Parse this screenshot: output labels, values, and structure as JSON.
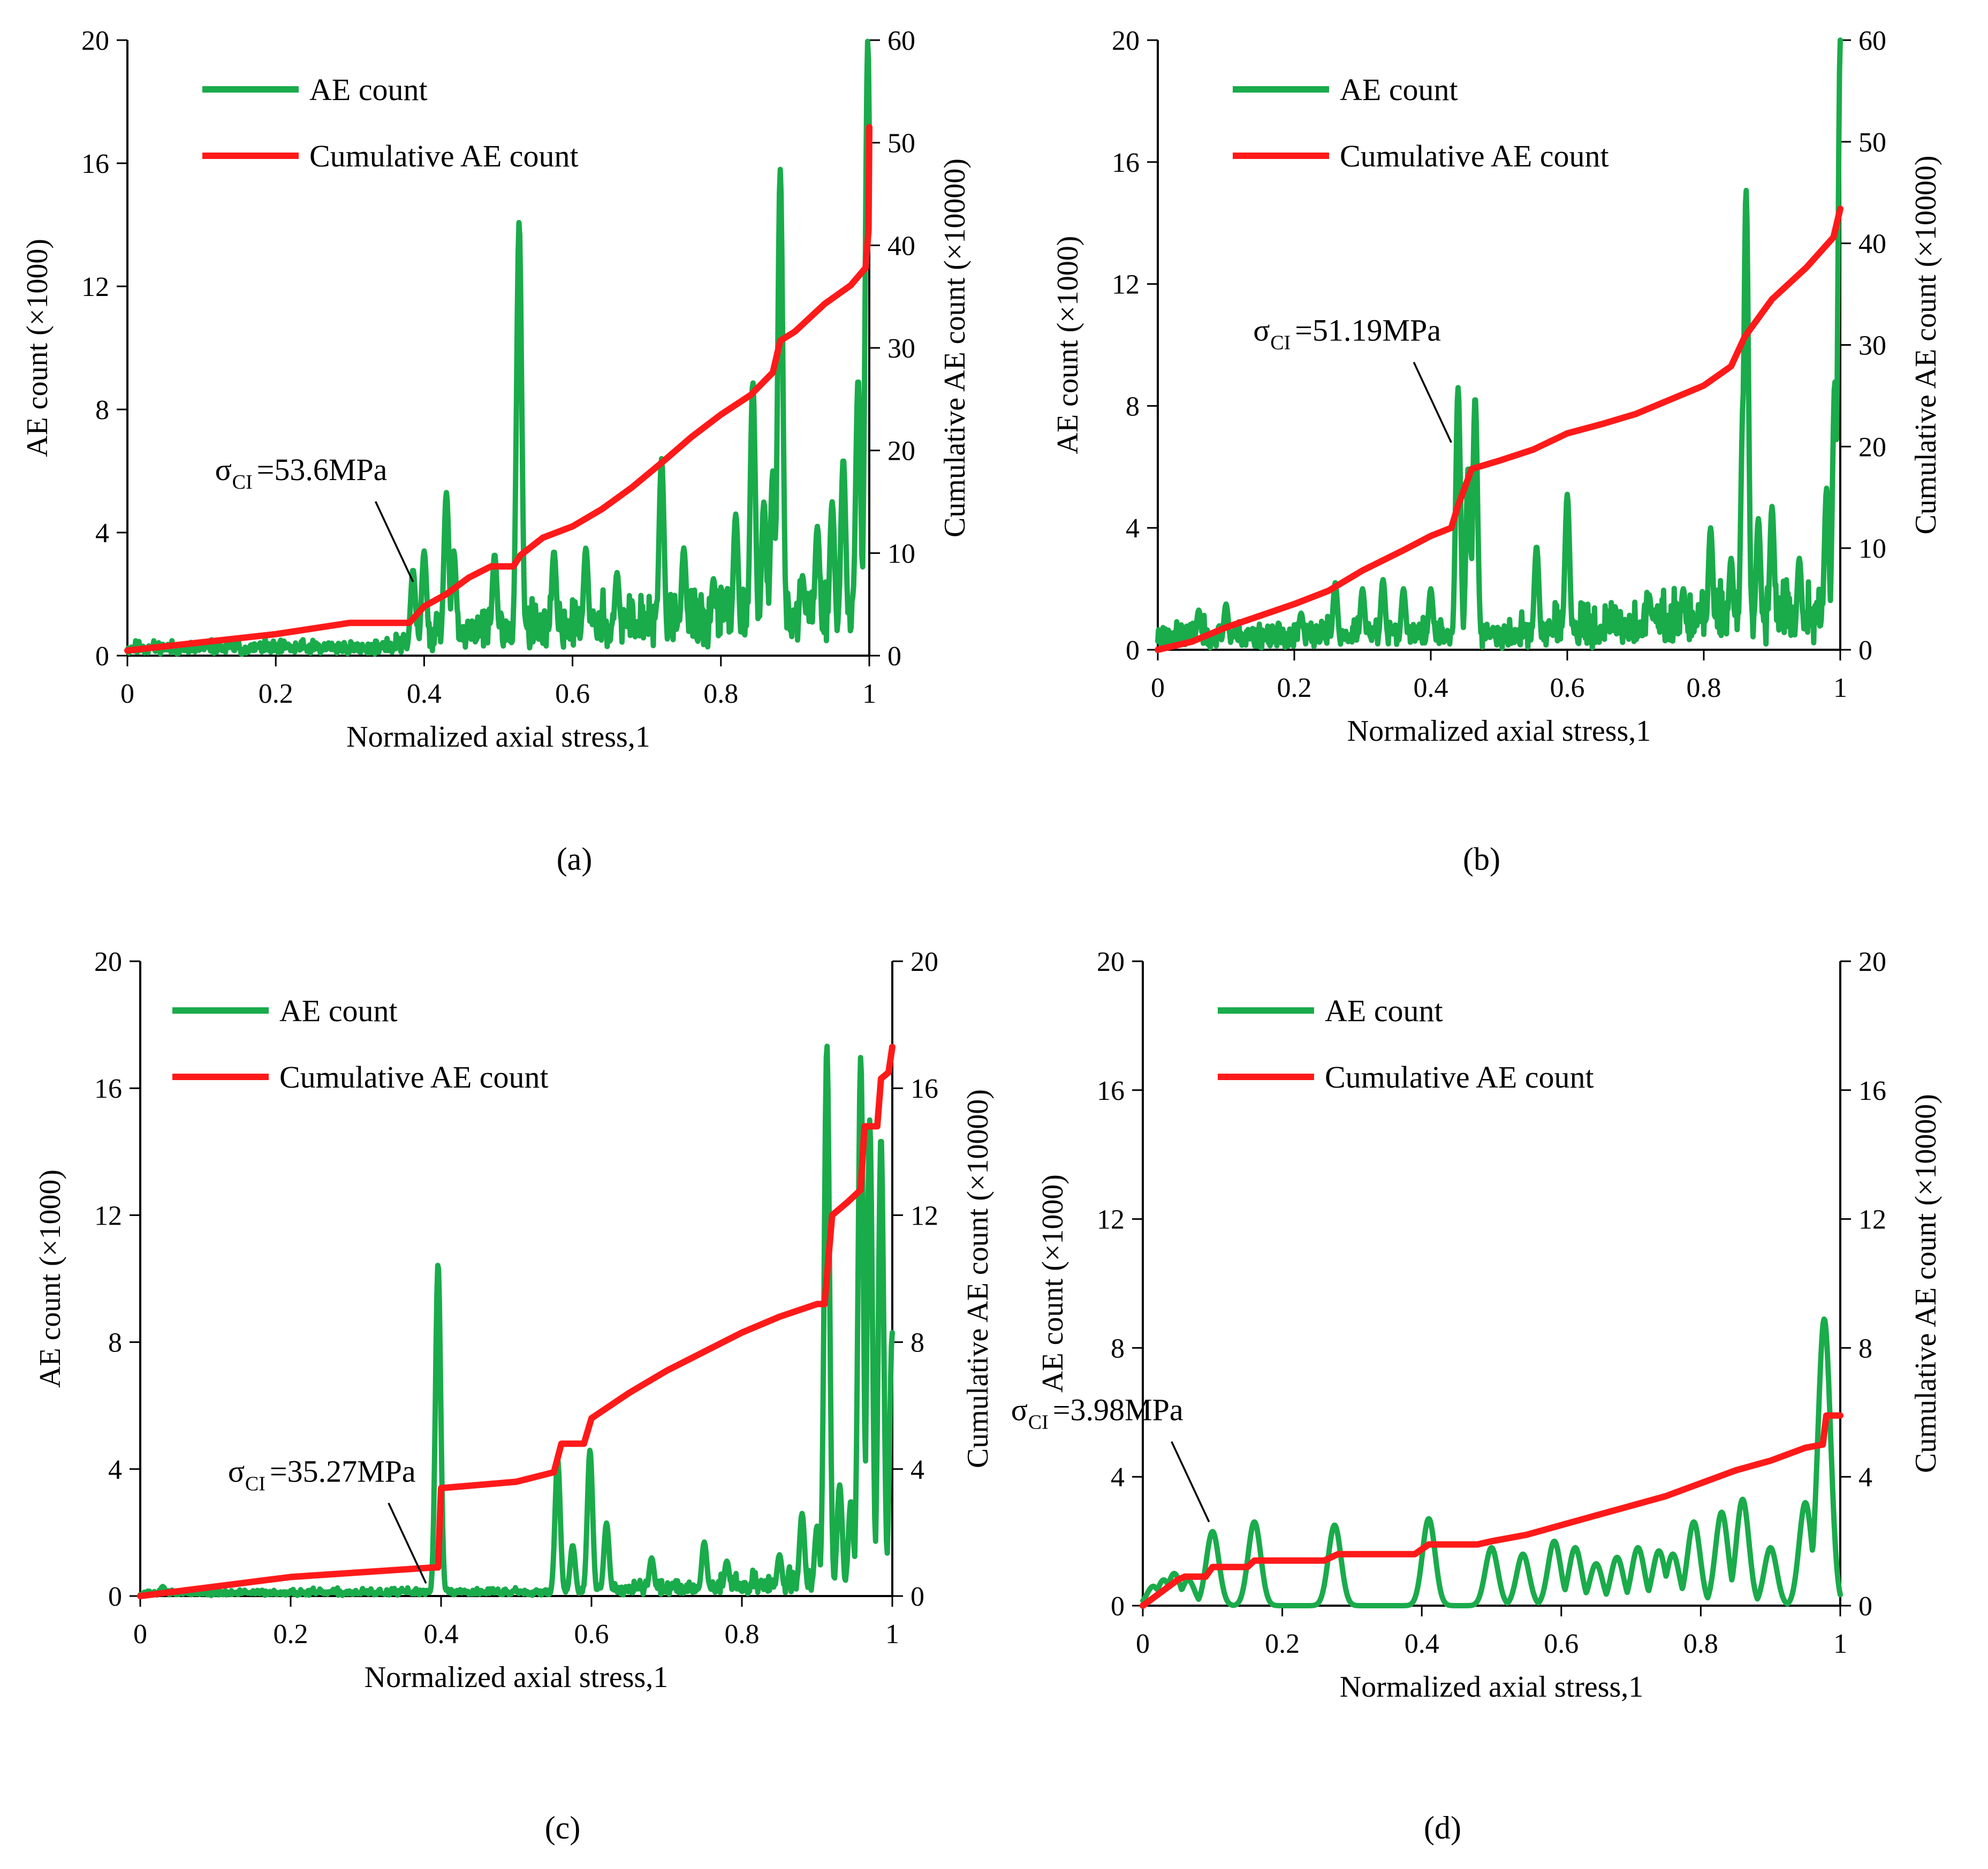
{
  "colors": {
    "ae": "#1aab4b",
    "cumulative": "#ff1a1a",
    "axis": "#000000"
  },
  "chart_data": [
    {
      "type": "line",
      "panel": "(a)",
      "xlabel": "Normalized axial stress,1",
      "ylabel": "AE count (×1000)",
      "y2label": "Cumulative AE count (×10000)",
      "xlim": [
        0,
        1
      ],
      "ylim": [
        0,
        20
      ],
      "y2lim": [
        0,
        60
      ],
      "xticks": [
        "0",
        "0.2",
        "0.4",
        "0.6",
        "0.8",
        "1"
      ],
      "yticks": [
        "0",
        "4",
        "8",
        "12",
        "16",
        "20"
      ],
      "y2ticks": [
        "0",
        "10",
        "20",
        "30",
        "40",
        "50",
        "60"
      ],
      "legend": [
        "AE count",
        "Cumulative AE count"
      ],
      "annotation": {
        "symbol": "σ",
        "sub": "CI",
        "text": "=53.6MPa",
        "x": 0.385,
        "y": 2.4
      },
      "series": [
        {
          "name": "AE count",
          "axis": "left",
          "baseline": 0.45,
          "noise": 0.35,
          "seed": 11,
          "noise_ramp": [
            [
              0.35,
              0.4
            ],
            [
              0.4,
              1.2
            ],
            [
              1.0,
              2.2
            ]
          ],
          "peaks": [
            [
              0.385,
              2.8
            ],
            [
              0.4,
              3.4
            ],
            [
              0.43,
              5.3
            ],
            [
              0.44,
              3.4
            ],
            [
              0.495,
              3.3
            ],
            [
              0.528,
              14.1
            ],
            [
              0.575,
              3.4
            ],
            [
              0.618,
              3.5
            ],
            [
              0.66,
              2.7
            ],
            [
              0.72,
              6.4
            ],
            [
              0.75,
              3.5
            ],
            [
              0.79,
              2.5
            ],
            [
              0.82,
              4.6
            ],
            [
              0.843,
              8.9
            ],
            [
              0.858,
              5.0
            ],
            [
              0.87,
              6.0
            ],
            [
              0.88,
              15.8
            ],
            [
              0.91,
              2.6
            ],
            [
              0.93,
              4.2
            ],
            [
              0.95,
              5.0
            ],
            [
              0.965,
              6.4
            ],
            [
              0.985,
              9.0
            ],
            [
              0.998,
              20.0
            ]
          ]
        },
        {
          "name": "Cumulative AE count",
          "axis": "right",
          "x": [
            0,
            0.1,
            0.2,
            0.3,
            0.38,
            0.4,
            0.43,
            0.46,
            0.49,
            0.52,
            0.53,
            0.56,
            0.6,
            0.64,
            0.68,
            0.72,
            0.76,
            0.8,
            0.84,
            0.87,
            0.88,
            0.9,
            0.94,
            0.975,
            0.995,
            0.999,
            1.0
          ],
          "values": [
            0.5,
            1.3,
            2.1,
            3.2,
            3.2,
            4.8,
            6.0,
            7.6,
            8.7,
            8.7,
            9.8,
            11.5,
            12.6,
            14.3,
            16.4,
            18.8,
            21.3,
            23.5,
            25.4,
            27.6,
            30.7,
            31.6,
            34.3,
            36.1,
            37.8,
            41.5,
            51.5
          ]
        }
      ]
    },
    {
      "type": "line",
      "panel": "(b)",
      "xlabel": "Normalized axial stress,1",
      "ylabel": "AE count (×1000)",
      "y2label": "Cumulative AE count (×10000)",
      "xlim": [
        0,
        1
      ],
      "ylim": [
        0,
        20
      ],
      "y2lim": [
        0,
        60
      ],
      "xticks": [
        "0",
        "0.2",
        "0.4",
        "0.6",
        "0.8",
        "1"
      ],
      "yticks": [
        "0",
        "4",
        "8",
        "12",
        "16",
        "20"
      ],
      "y2ticks": [
        "0",
        "10",
        "20",
        "30",
        "40",
        "50",
        "60"
      ],
      "legend": [
        "AE count",
        "Cumulative AE count"
      ],
      "annotation": {
        "symbol": "σ",
        "sub": "CI",
        "text": "=51.19MPa",
        "x": 0.43,
        "y": 6.8
      },
      "series": [
        {
          "name": "AE count",
          "axis": "left",
          "baseline": 0.5,
          "noise": 0.45,
          "seed": 23,
          "noise_ramp": [
            [
              0.0,
              0.6
            ],
            [
              0.5,
              0.7
            ],
            [
              1.0,
              1.8
            ]
          ],
          "peaks": [
            [
              0.06,
              1.3
            ],
            [
              0.1,
              1.5
            ],
            [
              0.21,
              1.2
            ],
            [
              0.26,
              2.2
            ],
            [
              0.3,
              2.0
            ],
            [
              0.33,
              2.3
            ],
            [
              0.36,
              2.0
            ],
            [
              0.4,
              2.0
            ],
            [
              0.44,
              8.6
            ],
            [
              0.455,
              6.0
            ],
            [
              0.465,
              8.3
            ],
            [
              0.555,
              3.4
            ],
            [
              0.6,
              5.1
            ],
            [
              0.72,
              1.8
            ],
            [
              0.77,
              2.0
            ],
            [
              0.81,
              4.0
            ],
            [
              0.84,
              3.0
            ],
            [
              0.858,
              8.4
            ],
            [
              0.862,
              15.1
            ],
            [
              0.88,
              4.3
            ],
            [
              0.9,
              4.7
            ],
            [
              0.94,
              3.0
            ],
            [
              0.98,
              5.3
            ],
            [
              0.992,
              8.8
            ],
            [
              1.0,
              20.0
            ]
          ]
        },
        {
          "name": "Cumulative AE count",
          "axis": "right",
          "x": [
            0,
            0.05,
            0.1,
            0.2,
            0.25,
            0.3,
            0.36,
            0.4,
            0.43,
            0.44,
            0.46,
            0.5,
            0.55,
            0.6,
            0.65,
            0.7,
            0.75,
            0.8,
            0.84,
            0.86,
            0.9,
            0.95,
            0.99,
            1.0
          ],
          "values": [
            0.0,
            0.8,
            2.2,
            4.5,
            5.8,
            7.8,
            9.8,
            11.2,
            12.0,
            14.2,
            17.8,
            18.6,
            19.7,
            21.3,
            22.2,
            23.2,
            24.6,
            26.0,
            27.9,
            30.8,
            34.5,
            37.6,
            40.6,
            43.4
          ]
        }
      ]
    },
    {
      "type": "line",
      "panel": "(c)",
      "xlabel": "Normalized axial stress,1",
      "ylabel": "AE count (×1000)",
      "y2label": "Cumulative AE count (×10000)",
      "xlim": [
        0,
        1
      ],
      "ylim": [
        0,
        20
      ],
      "y2lim": [
        0,
        20
      ],
      "xticks": [
        "0",
        "0.2",
        "0.4",
        "0.6",
        "0.8",
        "1"
      ],
      "yticks": [
        "0",
        "4",
        "8",
        "12",
        "16",
        "20"
      ],
      "y2ticks": [
        "0",
        "4",
        "8",
        "12",
        "16",
        "20"
      ],
      "legend": [
        "AE count",
        "Cumulative AE count"
      ],
      "annotation": {
        "symbol": "σ",
        "sub": "CI",
        "text": "=35.27MPa",
        "x": 0.38,
        "y": 0.4
      },
      "series": [
        {
          "name": "AE count",
          "axis": "left",
          "baseline": 0.12,
          "noise": 0.1,
          "seed": 37,
          "noise_ramp": [
            [
              0.0,
              0.5
            ],
            [
              0.55,
              0.8
            ],
            [
              1.0,
              3.0
            ]
          ],
          "peaks": [
            [
              0.03,
              0.3
            ],
            [
              0.396,
              10.5
            ],
            [
              0.555,
              4.3
            ],
            [
              0.575,
              1.6
            ],
            [
              0.598,
              4.6
            ],
            [
              0.62,
              2.3
            ],
            [
              0.68,
              1.2
            ],
            [
              0.75,
              1.7
            ],
            [
              0.78,
              1.1
            ],
            [
              0.85,
              1.3
            ],
            [
              0.88,
              2.6
            ],
            [
              0.9,
              2.2
            ],
            [
              0.913,
              17.4
            ],
            [
              0.93,
              3.5
            ],
            [
              0.945,
              3.0
            ],
            [
              0.958,
              17.0
            ],
            [
              0.97,
              15.0
            ],
            [
              0.985,
              14.5
            ],
            [
              1.0,
              8.3
            ]
          ]
        },
        {
          "name": "Cumulative AE count",
          "axis": "right",
          "x": [
            0,
            0.2,
            0.39,
            0.396,
            0.4,
            0.5,
            0.55,
            0.56,
            0.59,
            0.6,
            0.65,
            0.7,
            0.75,
            0.8,
            0.85,
            0.9,
            0.91,
            0.92,
            0.94,
            0.958,
            0.963,
            0.98,
            0.985,
            0.995,
            1.0
          ],
          "values": [
            0.0,
            0.6,
            0.9,
            0.9,
            3.4,
            3.6,
            3.9,
            4.8,
            4.8,
            5.6,
            6.4,
            7.1,
            7.7,
            8.3,
            8.8,
            9.2,
            9.2,
            12.0,
            12.4,
            12.8,
            14.8,
            14.8,
            16.3,
            16.5,
            17.3
          ]
        }
      ]
    },
    {
      "type": "line",
      "panel": "(d)",
      "xlabel": "Normalized axial stress,1",
      "ylabel": "AE count (×1000)",
      "y2label": "Cumulative AE count (×10000)",
      "xlim": [
        0,
        1
      ],
      "ylim": [
        0,
        20
      ],
      "y2lim": [
        0,
        20
      ],
      "xticks": [
        "0",
        "0.2",
        "0.4",
        "0.6",
        "0.8",
        "1"
      ],
      "yticks": [
        "0",
        "4",
        "8",
        "12",
        "16",
        "20"
      ],
      "y2ticks": [
        "0",
        "4",
        "8",
        "12",
        "16",
        "20"
      ],
      "legend": [
        "AE count",
        "Cumulative AE count"
      ],
      "annotation": {
        "symbol": "σ",
        "sub": "CI",
        "text": "=3.98MPa",
        "x": 0.095,
        "y": 2.6
      },
      "series": [
        {
          "name": "AE count",
          "axis": "left",
          "baseline": 0.0,
          "noise": 0.0,
          "seed": 5,
          "peak_width": 0.009,
          "noise_ramp": [
            [
              0.0,
              0.0
            ],
            [
              1.0,
              0.0
            ]
          ],
          "peaks": [
            [
              0.015,
              0.6
            ],
            [
              0.03,
              0.8
            ],
            [
              0.045,
              1.0
            ],
            [
              0.065,
              0.8
            ],
            [
              0.1,
              2.3
            ],
            [
              0.16,
              2.6
            ],
            [
              0.275,
              2.5
            ],
            [
              0.41,
              2.7
            ],
            [
              0.5,
              1.8
            ],
            [
              0.545,
              1.6
            ],
            [
              0.59,
              2.0
            ],
            [
              0.62,
              1.8
            ],
            [
              0.65,
              1.3
            ],
            [
              0.68,
              1.5
            ],
            [
              0.71,
              1.8
            ],
            [
              0.74,
              1.7
            ],
            [
              0.76,
              1.6
            ],
            [
              0.79,
              2.6
            ],
            [
              0.83,
              2.9
            ],
            [
              0.86,
              3.3
            ],
            [
              0.9,
              1.8
            ],
            [
              0.95,
              3.2
            ],
            [
              0.977,
              8.9
            ]
          ]
        },
        {
          "name": "Cumulative AE count",
          "axis": "right",
          "x": [
            0,
            0.05,
            0.06,
            0.09,
            0.1,
            0.15,
            0.16,
            0.26,
            0.28,
            0.39,
            0.41,
            0.48,
            0.5,
            0.55,
            0.6,
            0.65,
            0.7,
            0.75,
            0.8,
            0.85,
            0.9,
            0.95,
            0.975,
            0.98,
            1.0
          ],
          "values": [
            0.0,
            0.8,
            0.9,
            0.9,
            1.2,
            1.2,
            1.4,
            1.4,
            1.6,
            1.6,
            1.9,
            1.9,
            2.0,
            2.2,
            2.5,
            2.8,
            3.1,
            3.4,
            3.8,
            4.2,
            4.5,
            4.9,
            5.0,
            5.9,
            5.9
          ]
        }
      ]
    }
  ]
}
